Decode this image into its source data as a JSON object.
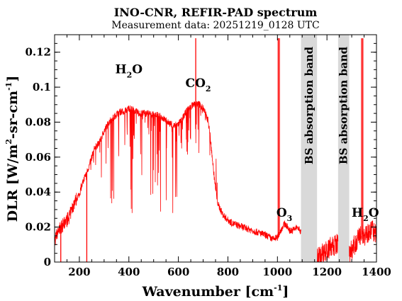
{
  "chart_data": {
    "type": "line",
    "title": "INO-CNR, REFIR-PAD spectrum",
    "subtitle": "Measurement data: 20251219_0128 UTC",
    "xlabel": "Wavenumber [cm",
    "xlabel_sup": "-1",
    "xlabel_end": "]",
    "ylabel_parts": [
      "DLR [W/m",
      "2",
      "-sr-cm",
      "-1",
      "]"
    ],
    "xlim": [
      100,
      1400
    ],
    "ylim": [
      0,
      0.13
    ],
    "xticks": [
      200,
      400,
      600,
      800,
      1000,
      1200,
      1400
    ],
    "xtick_labels": [
      "200",
      "400",
      "600",
      "800",
      "1000",
      "1200",
      "1400"
    ],
    "yticks": [
      0,
      0.02,
      0.04,
      0.06,
      0.08,
      0.1,
      0.12
    ],
    "ytick_labels": [
      "0",
      "0.02",
      "0.04",
      "0.06",
      "0.08",
      "0.1",
      "0.12"
    ],
    "series_color": "#ff0000",
    "band_color": "#d9d9d9",
    "bands": [
      {
        "x0": 1095,
        "x1": 1160,
        "label": "BS absorption band"
      },
      {
        "x0": 1245,
        "x1": 1290,
        "label": "BS absorption band"
      }
    ],
    "annotations": [
      {
        "main": "H",
        "sub": "2",
        "rest": "O",
        "x": 400,
        "y": 0.108
      },
      {
        "main": "CO",
        "sub": "2",
        "rest": "",
        "x": 680,
        "y": 0.1
      },
      {
        "main": "O",
        "sub": "3",
        "rest": "",
        "x": 1028,
        "y": 0.026
      },
      {
        "main": "H",
        "sub": "2",
        "rest": "O",
        "x": 1355,
        "y": 0.026
      }
    ],
    "envelope": [
      [
        100,
        0.012
      ],
      [
        120,
        0.019
      ],
      [
        140,
        0.022
      ],
      [
        160,
        0.026
      ],
      [
        180,
        0.034
      ],
      [
        200,
        0.039
      ],
      [
        220,
        0.048
      ],
      [
        240,
        0.055
      ],
      [
        260,
        0.065
      ],
      [
        280,
        0.068
      ],
      [
        300,
        0.075
      ],
      [
        320,
        0.08
      ],
      [
        340,
        0.083
      ],
      [
        360,
        0.086
      ],
      [
        380,
        0.086
      ],
      [
        400,
        0.088
      ],
      [
        420,
        0.087
      ],
      [
        440,
        0.085
      ],
      [
        460,
        0.085
      ],
      [
        480,
        0.085
      ],
      [
        500,
        0.084
      ],
      [
        520,
        0.084
      ],
      [
        540,
        0.082
      ],
      [
        560,
        0.08
      ],
      [
        580,
        0.078
      ],
      [
        600,
        0.079
      ],
      [
        620,
        0.083
      ],
      [
        640,
        0.088
      ],
      [
        660,
        0.09
      ],
      [
        680,
        0.091
      ],
      [
        700,
        0.088
      ],
      [
        720,
        0.081
      ],
      [
        730,
        0.07
      ],
      [
        740,
        0.055
      ],
      [
        750,
        0.042
      ],
      [
        760,
        0.033
      ],
      [
        780,
        0.027
      ],
      [
        800,
        0.024
      ],
      [
        820,
        0.022
      ],
      [
        840,
        0.021
      ],
      [
        860,
        0.02
      ],
      [
        880,
        0.019
      ],
      [
        900,
        0.018
      ],
      [
        920,
        0.017
      ],
      [
        940,
        0.016
      ],
      [
        960,
        0.015
      ],
      [
        980,
        0.013
      ],
      [
        1000,
        0.014
      ],
      [
        1010,
        0.017
      ],
      [
        1020,
        0.02
      ],
      [
        1030,
        0.022
      ],
      [
        1040,
        0.02
      ],
      [
        1050,
        0.018
      ],
      [
        1060,
        0.018
      ],
      [
        1080,
        0.02
      ],
      [
        1090,
        0.018
      ],
      [
        1160,
        0.003
      ],
      [
        1180,
        0.005
      ],
      [
        1200,
        0.007
      ],
      [
        1220,
        0.009
      ],
      [
        1240,
        0.01
      ],
      [
        1290,
        0.004
      ],
      [
        1300,
        0.007
      ],
      [
        1320,
        0.012
      ],
      [
        1340,
        0.016
      ],
      [
        1360,
        0.015
      ],
      [
        1380,
        0.018
      ],
      [
        1400,
        0.017
      ]
    ],
    "line_dips": [
      {
        "x0": 300,
        "x1": 600,
        "floor": 0.028
      },
      {
        "x0": 200,
        "x1": 300,
        "floor": 0.045
      },
      {
        "x0": 600,
        "x1": 760,
        "floor": 0.06
      }
    ],
    "spikes": [
      {
        "x": 125,
        "y": 0.0
      },
      {
        "x": 230,
        "y": 0.0
      },
      {
        "x": 670,
        "y": 0.128
      },
      {
        "x": 1003,
        "y": 0.128
      },
      {
        "x": 1008,
        "y": 0.128
      },
      {
        "x": 1340,
        "y": 0.128
      },
      {
        "x": 1345,
        "y": 0.128
      }
    ]
  }
}
